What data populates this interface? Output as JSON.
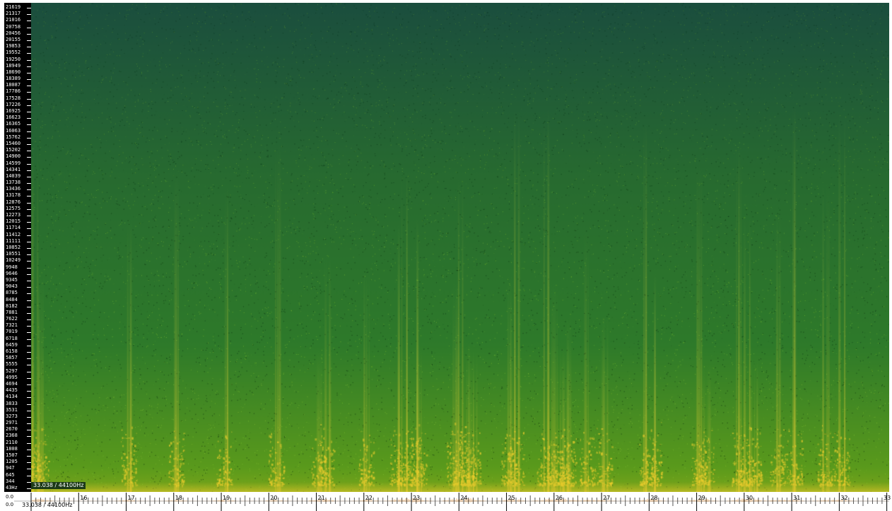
{
  "frequency_axis": {
    "labels": [
      "21619",
      "21317",
      "21016",
      "20758",
      "20456",
      "20155",
      "19853",
      "19552",
      "19250",
      "18949",
      "18690",
      "18389",
      "18087",
      "17786",
      "17528",
      "17226",
      "16925",
      "16623",
      "16365",
      "16063",
      "15762",
      "15460",
      "15202",
      "14900",
      "14599",
      "14341",
      "14039",
      "13738",
      "13436",
      "13178",
      "12876",
      "12575",
      "12273",
      "12015",
      "11714",
      "11412",
      "11111",
      "10852",
      "10551",
      "10249",
      "9948",
      "9646",
      "9345",
      "9043",
      "8785",
      "8484",
      "8182",
      "7881",
      "7622",
      "7321",
      "7019",
      "6718",
      "6459",
      "6158",
      "5857",
      "5555",
      "5297",
      "4995",
      "4694",
      "4435",
      "4134",
      "3833",
      "3531",
      "3273",
      "2971",
      "2670",
      "2368",
      "2110",
      "1808",
      "1507",
      "1205",
      "947",
      "645",
      "344",
      "43Hz"
    ],
    "color": "#ffffff"
  },
  "spectrogram": {
    "colors": {
      "high_freq": "#1b4e3e",
      "mid": "#2e7a2a",
      "low_freq": "#5a9a1c",
      "energy": "#e6c82e"
    },
    "burst_times": [
      15.05,
      15.2,
      17.05,
      18.05,
      19.05,
      20.15,
      21.05,
      21.2,
      22.05,
      22.7,
      22.85,
      23.05,
      23.15,
      23.9,
      24.05,
      24.2,
      24.3,
      25.05,
      25.2,
      25.8,
      26.0,
      26.15,
      26.3,
      26.7,
      27.05,
      27.95,
      28.1,
      29.05,
      29.2,
      29.9,
      30.05,
      30.2,
      30.7,
      31.05,
      31.7,
      32.05
    ]
  },
  "readout": {
    "position_text": "33.038 / 44100Hz"
  },
  "timeline": {
    "amplitude_labels": [
      "0.0",
      "0.0"
    ],
    "time_labels": [
      "16",
      "17",
      "18",
      "19",
      "20",
      "21",
      "22",
      "23",
      "24",
      "25",
      "26",
      "27",
      "28",
      "29",
      "30",
      "31",
      "32",
      "33"
    ],
    "time_start": 15.0,
    "time_end": 33.05,
    "waveform_color": "#e08a2e"
  }
}
